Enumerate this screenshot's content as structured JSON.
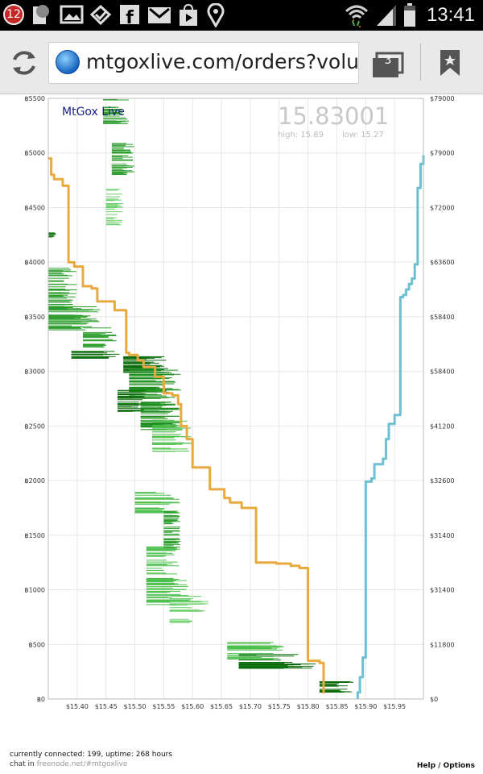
{
  "status_bar": {
    "notification_count": "12",
    "time": "13:41",
    "icons": [
      "notification-badge-icon",
      "thumbnail-icon",
      "gallery-icon",
      "check-icon",
      "facebook-icon",
      "gmail-icon",
      "store-icon",
      "location-icon",
      "wifi-icon",
      "signal-icon",
      "battery-icon"
    ]
  },
  "browser": {
    "url": "mtgoxlive.com/orders?volu",
    "tabs_count": "3",
    "icons": [
      "reload-icon",
      "globe-icon",
      "tabs-icon",
      "bookmark-icon"
    ]
  },
  "chart_data": {
    "type": "line",
    "title": "MtGox Live",
    "current_price": "15.83001",
    "high": "high: 15.89",
    "low": "low: 15.27",
    "x_ticks": [
      "$15.40",
      "$15.45",
      "$15.50",
      "$15.55",
      "$15.60",
      "$15.65",
      "$15.70",
      "$15.75",
      "$15.80",
      "$15.85",
      "$15.90",
      "$15.95"
    ],
    "x_tick_values": [
      15.4,
      15.45,
      15.5,
      15.55,
      15.6,
      15.65,
      15.7,
      15.75,
      15.8,
      15.85,
      15.9,
      15.95
    ],
    "xlim": [
      15.35,
      16.0
    ],
    "y_left_ticks": [
      "฿0",
      "฿500",
      "฿1000",
      "฿1500",
      "฿2000",
      "฿2500",
      "฿3000",
      "฿3500",
      "฿4000",
      "฿4500",
      "฿5000",
      "฿5500"
    ],
    "y_left_values": [
      0,
      500,
      1000,
      1500,
      2000,
      2500,
      3000,
      3500,
      4000,
      4500,
      5000,
      5500
    ],
    "ylim_left": [
      0,
      5500
    ],
    "y_right_ticks": [
      "$0",
      "$11800",
      "$31400",
      "$31400",
      "$32600",
      "$41200",
      "$58400",
      "$58400",
      "$63600",
      "$72000",
      "$79000",
      "$79000"
    ],
    "series": [
      {
        "name": "",
        "color": "#e8a93e",
        "points": [
          [
            15.35,
            4950
          ],
          [
            15.355,
            4950
          ],
          [
            15.355,
            4800
          ],
          [
            15.36,
            4800
          ],
          [
            15.36,
            4760
          ],
          [
            15.375,
            4760
          ],
          [
            15.375,
            4700
          ],
          [
            15.385,
            4700
          ],
          [
            15.385,
            4000
          ],
          [
            15.395,
            4000
          ],
          [
            15.395,
            3960
          ],
          [
            15.41,
            3960
          ],
          [
            15.41,
            3780
          ],
          [
            15.425,
            3780
          ],
          [
            15.425,
            3760
          ],
          [
            15.435,
            3760
          ],
          [
            15.435,
            3640
          ],
          [
            15.465,
            3640
          ],
          [
            15.465,
            3560
          ],
          [
            15.485,
            3560
          ],
          [
            15.485,
            3170
          ],
          [
            15.49,
            3170
          ],
          [
            15.49,
            3150
          ],
          [
            15.505,
            3150
          ],
          [
            15.505,
            3100
          ],
          [
            15.515,
            3100
          ],
          [
            15.515,
            3040
          ],
          [
            15.535,
            3040
          ],
          [
            15.535,
            2950
          ],
          [
            15.55,
            2950
          ],
          [
            15.55,
            2800
          ],
          [
            15.565,
            2800
          ],
          [
            15.565,
            2780
          ],
          [
            15.575,
            2780
          ],
          [
            15.575,
            2700
          ],
          [
            15.58,
            2700
          ],
          [
            15.58,
            2500
          ],
          [
            15.59,
            2500
          ],
          [
            15.59,
            2380
          ],
          [
            15.6,
            2380
          ],
          [
            15.6,
            2120
          ],
          [
            15.63,
            2120
          ],
          [
            15.63,
            1920
          ],
          [
            15.655,
            1920
          ],
          [
            15.655,
            1840
          ],
          [
            15.665,
            1840
          ],
          [
            15.665,
            1800
          ],
          [
            15.685,
            1800
          ],
          [
            15.685,
            1750
          ],
          [
            15.71,
            1750
          ],
          [
            15.71,
            1250
          ],
          [
            15.745,
            1250
          ],
          [
            15.745,
            1240
          ],
          [
            15.77,
            1240
          ],
          [
            15.77,
            1220
          ],
          [
            15.785,
            1220
          ],
          [
            15.785,
            1200
          ],
          [
            15.8,
            1200
          ],
          [
            15.8,
            350
          ],
          [
            15.82,
            350
          ],
          [
            15.82,
            330
          ],
          [
            15.827,
            330
          ],
          [
            15.827,
            50
          ]
        ]
      },
      {
        "name": "",
        "color": "#6cc0d2",
        "points": [
          [
            15.886,
            0
          ],
          [
            15.886,
            60
          ],
          [
            15.89,
            60
          ],
          [
            15.89,
            200
          ],
          [
            15.895,
            200
          ],
          [
            15.895,
            380
          ],
          [
            15.9,
            380
          ],
          [
            15.9,
            1990
          ],
          [
            15.91,
            1990
          ],
          [
            15.91,
            2020
          ],
          [
            15.915,
            2020
          ],
          [
            15.915,
            2150
          ],
          [
            15.93,
            2150
          ],
          [
            15.93,
            2200
          ],
          [
            15.935,
            2200
          ],
          [
            15.935,
            2380
          ],
          [
            15.94,
            2380
          ],
          [
            15.94,
            2520
          ],
          [
            15.95,
            2520
          ],
          [
            15.95,
            2600
          ],
          [
            15.96,
            2600
          ],
          [
            15.96,
            3680
          ],
          [
            15.965,
            3680
          ],
          [
            15.965,
            3700
          ],
          [
            15.97,
            3700
          ],
          [
            15.97,
            3750
          ],
          [
            15.975,
            3750
          ],
          [
            15.975,
            3800
          ],
          [
            15.98,
            3800
          ],
          [
            15.98,
            3850
          ],
          [
            15.985,
            3850
          ],
          [
            15.985,
            3980
          ],
          [
            15.99,
            3980
          ],
          [
            15.99,
            4680
          ],
          [
            15.995,
            4680
          ],
          [
            15.995,
            4900
          ],
          [
            16.0,
            4900
          ],
          [
            16.0,
            4980
          ]
        ]
      }
    ]
  },
  "footer": {
    "connected": "currently connected: 199, uptime: 268 hours",
    "chat_prefix": "chat in ",
    "chat_link": "freenode.net/#mtgoxlive",
    "help": "Help / Options"
  }
}
